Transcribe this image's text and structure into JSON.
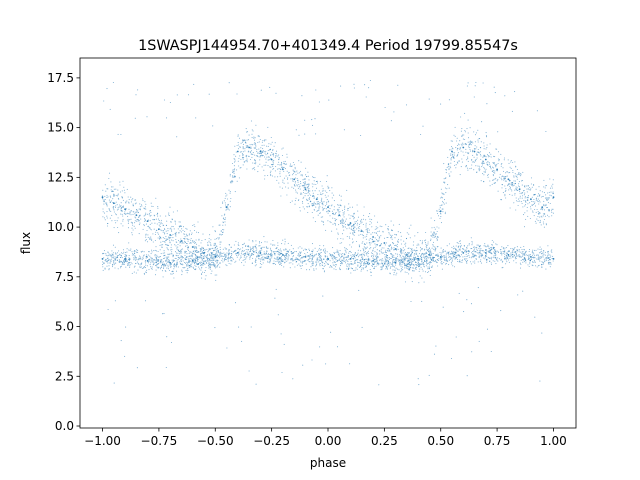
{
  "chart_data": {
    "type": "scatter",
    "title": "1SWASPJ144954.70+401349.4 Period 19799.85547s",
    "xlabel": "phase",
    "ylabel": "flux",
    "xlim": [
      -1.1,
      1.1
    ],
    "ylim": [
      -0.1,
      18.5
    ],
    "xticks": [
      -1.0,
      -0.75,
      -0.5,
      -0.25,
      0.0,
      0.25,
      0.5,
      0.75,
      1.0
    ],
    "xtick_labels": [
      "−1.00",
      "−0.75",
      "−0.50",
      "−0.25",
      "0.00",
      "0.25",
      "0.50",
      "0.75",
      "1.00"
    ],
    "yticks": [
      0.0,
      2.5,
      5.0,
      7.5,
      10.0,
      12.5,
      15.0,
      17.5
    ],
    "ytick_labels": [
      "0.0",
      "2.5",
      "5.0",
      "7.5",
      "10.0",
      "12.5",
      "15.0",
      "17.5"
    ],
    "grid": false,
    "point_color": "#1f77b4",
    "series": [
      {
        "x": [
          -1.0,
          -0.95,
          -0.9,
          -0.85,
          -0.8,
          -0.75,
          -0.7,
          -0.65,
          -0.6,
          -0.55,
          -0.5,
          -0.45,
          -0.4,
          -0.35,
          -0.3,
          -0.25,
          -0.2,
          -0.15,
          -0.1,
          -0.05,
          0.0,
          0.05,
          0.1,
          0.15,
          0.2,
          0.25,
          0.3,
          0.35,
          0.4,
          0.45,
          0.5,
          0.55,
          0.6,
          0.65,
          0.7,
          0.75,
          0.8,
          0.85,
          0.9,
          0.95,
          1.0
        ],
        "y": [
          11.5,
          11.2,
          10.9,
          10.6,
          10.3,
          9.9,
          9.6,
          9.3,
          9.0,
          8.7,
          8.5,
          11.0,
          13.8,
          14.0,
          13.8,
          13.4,
          12.9,
          12.4,
          11.9,
          11.4,
          11.0,
          10.6,
          10.2,
          9.8,
          9.5,
          9.2,
          8.9,
          8.6,
          8.4,
          8.6,
          10.8,
          13.8,
          14.0,
          13.8,
          13.4,
          12.9,
          12.4,
          11.9,
          11.4,
          11.0,
          11.5
        ]
      },
      {
        "x": [
          -1.0,
          -0.9,
          -0.8,
          -0.7,
          -0.6,
          -0.5,
          -0.4,
          -0.3,
          -0.2,
          -0.1,
          0.0,
          0.1,
          0.2,
          0.3,
          0.4,
          0.5,
          0.6,
          0.7,
          0.8,
          0.9,
          1.0
        ],
        "y": [
          8.4,
          8.4,
          8.3,
          8.2,
          8.3,
          8.5,
          8.7,
          8.7,
          8.6,
          8.5,
          8.4,
          8.4,
          8.3,
          8.2,
          8.4,
          8.5,
          8.7,
          8.7,
          8.6,
          8.5,
          8.4
        ]
      }
    ]
  }
}
